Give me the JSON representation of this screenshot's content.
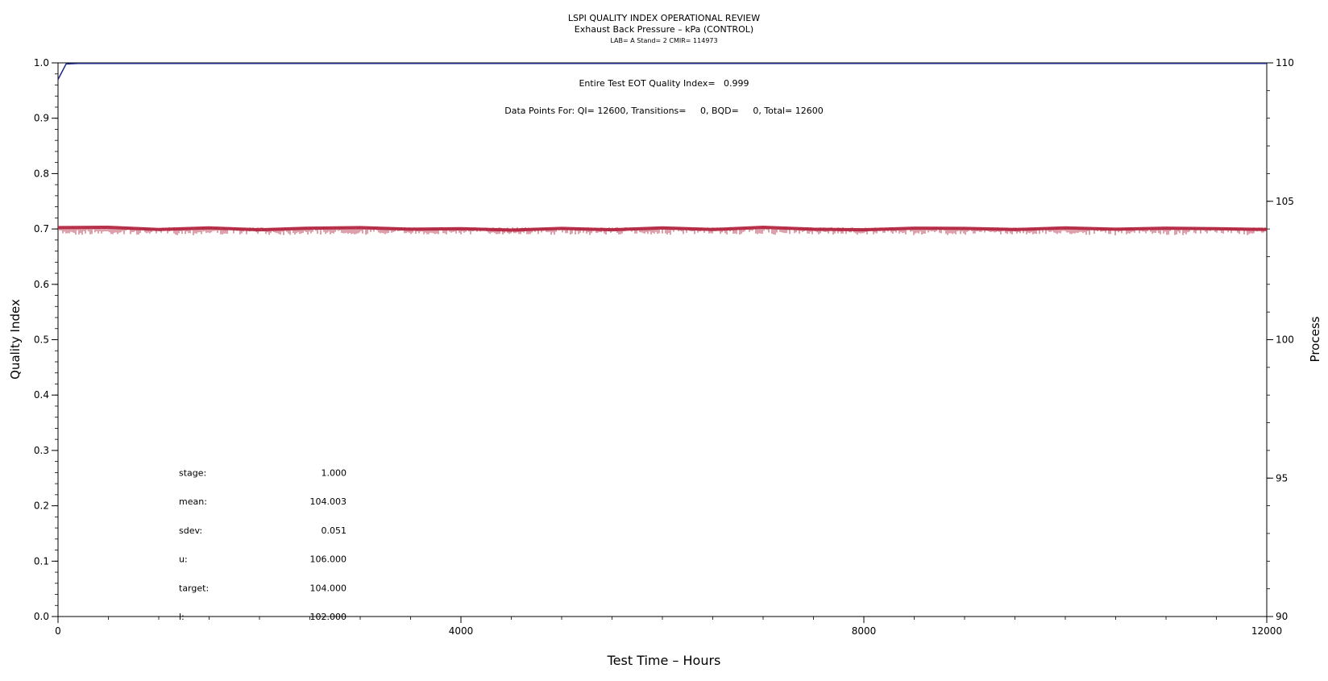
{
  "chart_data": {
    "type": "line",
    "title": "LSPI QUALITY INDEX OPERATIONAL REVIEW",
    "subtitle": "Exhaust Back Pressure – kPa (CONTROL)",
    "subsubtitle": "LAB= A Stand= 2 CMIR= 114973",
    "xlabel": "Test Time – Hours",
    "ylabel_left": "Quality Index",
    "ylabel_right": "Process",
    "xlim": [
      0,
      12000
    ],
    "ylim_left": [
      0.0,
      1.0
    ],
    "ylim_right": [
      90,
      110
    ],
    "x_ticks": [
      "0",
      "4000",
      "8000",
      "12000"
    ],
    "y_ticks_left": [
      "0.0",
      "0.1",
      "0.2",
      "0.3",
      "0.4",
      "0.5",
      "0.6",
      "0.7",
      "0.8",
      "0.9",
      "1.0"
    ],
    "y_ticks_right": [
      "90",
      "95",
      "100",
      "105",
      "110"
    ],
    "grid": false,
    "series": [
      {
        "axis": "left",
        "color": "#1f2a8a",
        "x": [
          0,
          80,
          200,
          12000
        ],
        "y": [
          0.97,
          0.998,
          0.999,
          0.999
        ]
      },
      {
        "axis": "right",
        "color": "#b01e38",
        "mean": 104.003,
        "sdev": 0.051,
        "x": [
          0,
          500,
          1000,
          1500,
          2000,
          2500,
          3000,
          3500,
          4000,
          4500,
          5000,
          5500,
          6000,
          6500,
          7000,
          7500,
          8000,
          8500,
          9000,
          9500,
          10000,
          10500,
          11000,
          11500,
          12000
        ],
        "y": [
          104.05,
          104.06,
          103.98,
          104.04,
          103.97,
          104.03,
          104.05,
          103.99,
          104.01,
          103.96,
          104.02,
          103.97,
          104.04,
          103.98,
          104.06,
          103.99,
          103.97,
          104.03,
          104.02,
          103.98,
          104.04,
          103.99,
          104.03,
          104.01,
          103.98
        ]
      }
    ],
    "annotations": {
      "eot": "Entire Test EOT Quality Index=   0.999",
      "data_points": "Data Points For: QI= 12600, Transitions=     0, BQD=     0, Total= 12600"
    },
    "stats": [
      {
        "label": "stage:",
        "value": "1.000"
      },
      {
        "label": "mean:",
        "value": "104.003"
      },
      {
        "label": "sdev:",
        "value": "0.051"
      },
      {
        "label": "u:",
        "value": "106.000"
      },
      {
        "label": "target:",
        "value": "104.000"
      },
      {
        "label": "l:",
        "value": "102.000"
      }
    ]
  }
}
